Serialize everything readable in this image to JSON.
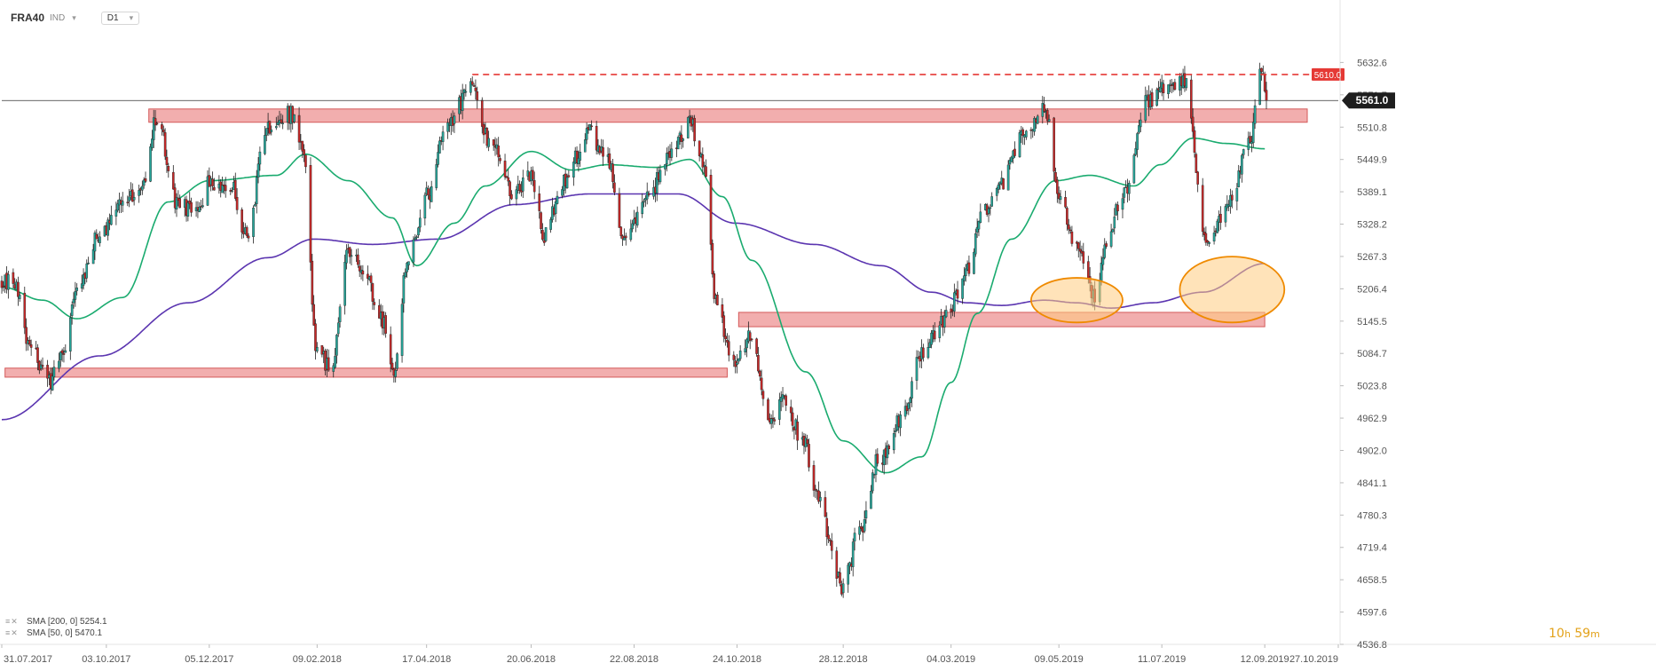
{
  "header": {
    "symbol": "FRA40",
    "market": "IND",
    "timeframe": "D1"
  },
  "legend": [
    {
      "label": "SMA  [200,  0]  5254.1"
    },
    {
      "label": "SMA  [50,  0]  5470.1"
    }
  ],
  "timer": {
    "hours": "10",
    "h": "h",
    "minutes": "59",
    "m": "m"
  },
  "colors": {
    "up_candle": "#26a69a",
    "down_candle": "#c62828",
    "sma50": "#1aab6f",
    "sma200": "#5b35b0",
    "zone_fill": "#ef9a9a",
    "zone_stroke": "#d45a5a",
    "resistance_line": "#e53935",
    "current_price_bg": "#1e1e1e",
    "highlight_fill": "#ffcc80",
    "highlight_stroke": "#ef8a00"
  },
  "chart_data": {
    "type": "candlestick",
    "title": "",
    "xlabel": "",
    "ylabel": "",
    "x_range": [
      "31.07.2017",
      "27.10.2019"
    ],
    "ylim": [
      4536.8,
      5693.4
    ],
    "grid": false,
    "x_ticks": [
      "31.07.2017",
      "03.10.2017",
      "05.12.2017",
      "09.02.2018",
      "17.04.2018",
      "20.06.2018",
      "22.08.2018",
      "24.10.2018",
      "28.12.2018",
      "04.03.2019",
      "09.05.2019",
      "11.07.2019",
      "12.09.2019",
      "27.10.2019"
    ],
    "y_ticks": [
      5632.6,
      5571.7,
      5510.8,
      5449.9,
      5389.1,
      5328.2,
      5267.3,
      5206.4,
      5145.5,
      5084.7,
      5023.8,
      4962.9,
      4902.0,
      4841.1,
      4780.3,
      4719.4,
      4658.5,
      4597.6,
      4536.8
    ],
    "y_tick_labels": [
      "5632.6",
      "5571.7",
      "5510.8",
      "5449.9",
      "5389.1",
      "5328.2",
      "5267.3",
      "5206.4",
      "5145.5",
      "5084.7",
      "5023.8",
      "4962.9",
      "4902.0",
      "4841.1",
      "4780.3",
      "4719.4",
      "4658.5",
      "4597.6",
      "4536.8"
    ],
    "current_price": {
      "value": 5561.0,
      "label": "5561.0"
    },
    "resistance": {
      "value": 5610.0,
      "label": "5610.0",
      "from": "2018-05-15",
      "to": "2019-10-10"
    },
    "zones": [
      {
        "from": "2017-08-02",
        "to": "2018-10-18",
        "low": 5040,
        "high": 5057
      },
      {
        "from": "2017-10-29",
        "to": "2019-10-08",
        "low": 5520,
        "high": 5545
      },
      {
        "from": "2018-10-25",
        "to": "2019-09-12",
        "low": 5135,
        "high": 5162
      }
    ],
    "highlights": [
      {
        "center_date": "2019-05-20",
        "center_value": 5185,
        "width_days": 28,
        "height_value": 42
      },
      {
        "center_date": "2019-08-23",
        "center_value": 5205,
        "width_days": 32,
        "height_value": 62
      }
    ],
    "anchors": [
      [
        "2017-07-31",
        5225
      ],
      [
        "2017-08-08",
        5210
      ],
      [
        "2017-08-18",
        5090
      ],
      [
        "2017-08-29",
        5030
      ],
      [
        "2017-09-05",
        5080
      ],
      [
        "2017-09-15",
        5210
      ],
      [
        "2017-09-29",
        5310
      ],
      [
        "2017-10-13",
        5370
      ],
      [
        "2017-10-25",
        5405
      ],
      [
        "2017-11-03",
        5530
      ],
      [
        "2017-11-15",
        5370
      ],
      [
        "2017-11-27",
        5350
      ],
      [
        "2017-12-05",
        5410
      ],
      [
        "2017-12-18",
        5400
      ],
      [
        "2017-12-29",
        5300
      ],
      [
        "2018-01-08",
        5510
      ],
      [
        "2018-01-24",
        5535
      ],
      [
        "2018-01-31",
        5470
      ],
      [
        "2018-02-09",
        5090
      ],
      [
        "2018-02-18",
        5050
      ],
      [
        "2018-02-27",
        5280
      ],
      [
        "2018-03-08",
        5250
      ],
      [
        "2018-03-22",
        5140
      ],
      [
        "2018-03-28",
        5040
      ],
      [
        "2018-04-05",
        5250
      ],
      [
        "2018-04-17",
        5380
      ],
      [
        "2018-04-30",
        5510
      ],
      [
        "2018-05-15",
        5600
      ],
      [
        "2018-05-25",
        5490
      ],
      [
        "2018-06-08",
        5390
      ],
      [
        "2018-06-20",
        5420
      ],
      [
        "2018-06-28",
        5310
      ],
      [
        "2018-07-10",
        5410
      ],
      [
        "2018-07-25",
        5500
      ],
      [
        "2018-08-05",
        5460
      ],
      [
        "2018-08-16",
        5310
      ],
      [
        "2018-08-30",
        5380
      ],
      [
        "2018-09-14",
        5470
      ],
      [
        "2018-09-25",
        5520
      ],
      [
        "2018-10-05",
        5430
      ],
      [
        "2018-10-11",
        5180
      ],
      [
        "2018-10-22",
        5070
      ],
      [
        "2018-11-02",
        5120
      ],
      [
        "2018-11-12",
        4960
      ],
      [
        "2018-11-22",
        5000
      ],
      [
        "2018-12-03",
        4920
      ],
      [
        "2018-12-13",
        4820
      ],
      [
        "2018-12-20",
        4730
      ],
      [
        "2018-12-27",
        4640
      ],
      [
        "2019-01-08",
        4760
      ],
      [
        "2019-01-18",
        4880
      ],
      [
        "2019-02-01",
        4960
      ],
      [
        "2019-02-14",
        5080
      ],
      [
        "2019-02-28",
        5150
      ],
      [
        "2019-03-14",
        5240
      ],
      [
        "2019-03-22",
        5340
      ],
      [
        "2019-04-04",
        5410
      ],
      [
        "2019-04-19",
        5500
      ],
      [
        "2019-04-30",
        5550
      ],
      [
        "2019-05-10",
        5370
      ],
      [
        "2019-05-20",
        5280
      ],
      [
        "2019-05-31",
        5190
      ],
      [
        "2019-06-07",
        5300
      ],
      [
        "2019-06-18",
        5390
      ],
      [
        "2019-07-02",
        5560
      ],
      [
        "2019-07-12",
        5580
      ],
      [
        "2019-07-26",
        5600
      ],
      [
        "2019-08-02",
        5420
      ],
      [
        "2019-08-06",
        5300
      ],
      [
        "2019-08-14",
        5330
      ],
      [
        "2019-08-23",
        5380
      ],
      [
        "2019-09-03",
        5490
      ],
      [
        "2019-09-10",
        5610
      ],
      [
        "2019-09-13",
        5561
      ]
    ],
    "sma50_anchors": [
      [
        "2017-07-31",
        5210
      ],
      [
        "2017-08-25",
        5185
      ],
      [
        "2017-09-15",
        5150
      ],
      [
        "2017-10-13",
        5190
      ],
      [
        "2017-11-10",
        5370
      ],
      [
        "2017-12-05",
        5410
      ],
      [
        "2018-01-15",
        5420
      ],
      [
        "2018-02-02",
        5460
      ],
      [
        "2018-02-28",
        5410
      ],
      [
        "2018-03-27",
        5340
      ],
      [
        "2018-04-11",
        5250
      ],
      [
        "2018-05-04",
        5330
      ],
      [
        "2018-05-23",
        5400
      ],
      [
        "2018-06-20",
        5465
      ],
      [
        "2018-07-15",
        5430
      ],
      [
        "2018-08-06",
        5440
      ],
      [
        "2018-09-05",
        5435
      ],
      [
        "2018-09-25",
        5450
      ],
      [
        "2018-10-15",
        5380
      ],
      [
        "2018-11-02",
        5260
      ],
      [
        "2018-12-05",
        5050
      ],
      [
        "2018-12-28",
        4920
      ],
      [
        "2019-01-23",
        4860
      ],
      [
        "2019-02-14",
        4890
      ],
      [
        "2019-03-04",
        5030
      ],
      [
        "2019-03-20",
        5160
      ],
      [
        "2019-04-10",
        5300
      ],
      [
        "2019-05-07",
        5410
      ],
      [
        "2019-05-28",
        5420
      ],
      [
        "2019-06-24",
        5400
      ],
      [
        "2019-07-10",
        5440
      ],
      [
        "2019-07-30",
        5490
      ],
      [
        "2019-08-20",
        5480
      ],
      [
        "2019-09-12",
        5470
      ]
    ],
    "sma200_anchors": [
      [
        "2017-07-31",
        4960
      ],
      [
        "2017-09-29",
        5080
      ],
      [
        "2017-11-22",
        5180
      ],
      [
        "2018-01-10",
        5265
      ],
      [
        "2018-02-07",
        5300
      ],
      [
        "2018-03-15",
        5290
      ],
      [
        "2018-04-24",
        5300
      ],
      [
        "2018-06-10",
        5365
      ],
      [
        "2018-07-26",
        5385
      ],
      [
        "2018-09-18",
        5385
      ],
      [
        "2018-10-23",
        5330
      ],
      [
        "2018-12-10",
        5290
      ],
      [
        "2019-01-20",
        5250
      ],
      [
        "2019-02-20",
        5200
      ],
      [
        "2019-03-14",
        5180
      ],
      [
        "2019-04-04",
        5175
      ],
      [
        "2019-04-30",
        5185
      ],
      [
        "2019-05-20",
        5180
      ],
      [
        "2019-06-10",
        5170
      ],
      [
        "2019-07-05",
        5180
      ],
      [
        "2019-08-05",
        5200
      ],
      [
        "2019-09-12",
        5254
      ]
    ]
  }
}
